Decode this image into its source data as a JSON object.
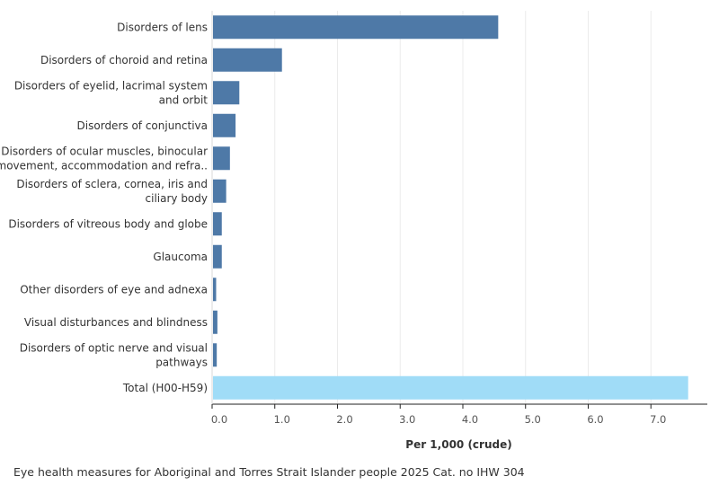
{
  "chart_data": {
    "type": "bar",
    "orientation": "horizontal",
    "categories": [
      [
        "Disorders of lens"
      ],
      [
        "Disorders of choroid and retina"
      ],
      [
        "Disorders of eyelid, lacrimal system",
        "and orbit"
      ],
      [
        "Disorders of conjunctiva"
      ],
      [
        "Disorders of ocular muscles, binocular",
        "movement, accommodation and refra.."
      ],
      [
        "Disorders of sclera, cornea, iris and",
        "ciliary body"
      ],
      [
        "Disorders of vitreous body and globe"
      ],
      [
        "Glaucoma"
      ],
      [
        "Other disorders of eye and adnexa"
      ],
      [
        "Visual disturbances and blindness"
      ],
      [
        "Disorders of optic nerve and visual",
        "pathways"
      ],
      [
        "Total (H00-H59)"
      ]
    ],
    "values": [
      4.55,
      1.1,
      0.42,
      0.36,
      0.27,
      0.21,
      0.14,
      0.14,
      0.05,
      0.07,
      0.06,
      7.58
    ],
    "bar_colors": [
      "#4e79a7",
      "#4e79a7",
      "#4e79a7",
      "#4e79a7",
      "#4e79a7",
      "#4e79a7",
      "#4e79a7",
      "#4e79a7",
      "#4e79a7",
      "#4e79a7",
      "#4e79a7",
      "#a0dcf7"
    ],
    "xlabel": "Per 1,000 (crude)",
    "xlim": [
      0,
      7.9
    ],
    "ticks": [
      0,
      1,
      2,
      3,
      4,
      5,
      6,
      7
    ],
    "tick_labels": [
      "0.0",
      "1.0",
      "2.0",
      "3.0",
      "4.0",
      "5.0",
      "6.0",
      "7.0"
    ],
    "grid": true
  },
  "source": "Eye health measures for Aboriginal and Torres Strait Islander people 2025 Cat. no IHW 304",
  "colors": {
    "bar": "#4e79a7",
    "total_bar": "#a0dcf7",
    "grid": "#ebebeb",
    "axis": "#222222"
  }
}
